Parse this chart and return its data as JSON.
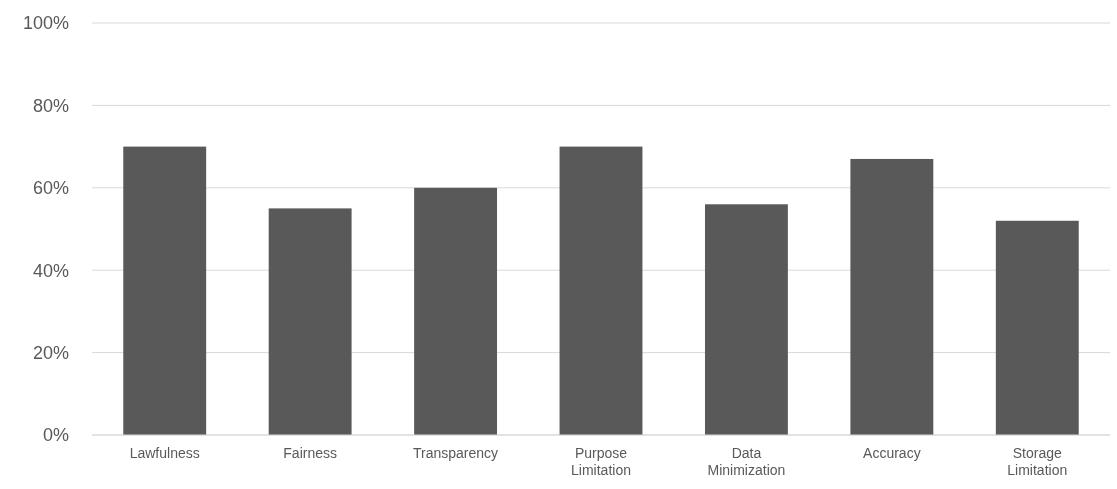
{
  "chart_data": {
    "type": "bar",
    "categories": [
      "Lawfulness",
      "Fairness",
      "Transparency",
      "Purpose Limitation",
      "Data Minimization",
      "Accuracy",
      "Storage Limitation"
    ],
    "values": [
      70,
      55,
      60,
      70,
      56,
      67,
      52
    ],
    "color": "#595959",
    "ylim": [
      0,
      100
    ],
    "yticks": [
      {
        "value": 0,
        "label": "0%"
      },
      {
        "value": 20,
        "label": "20%"
      },
      {
        "value": 40,
        "label": "40%"
      },
      {
        "value": 60,
        "label": "60%"
      },
      {
        "value": 80,
        "label": "80%"
      },
      {
        "value": 100,
        "label": "100%"
      }
    ],
    "grid": "y"
  }
}
